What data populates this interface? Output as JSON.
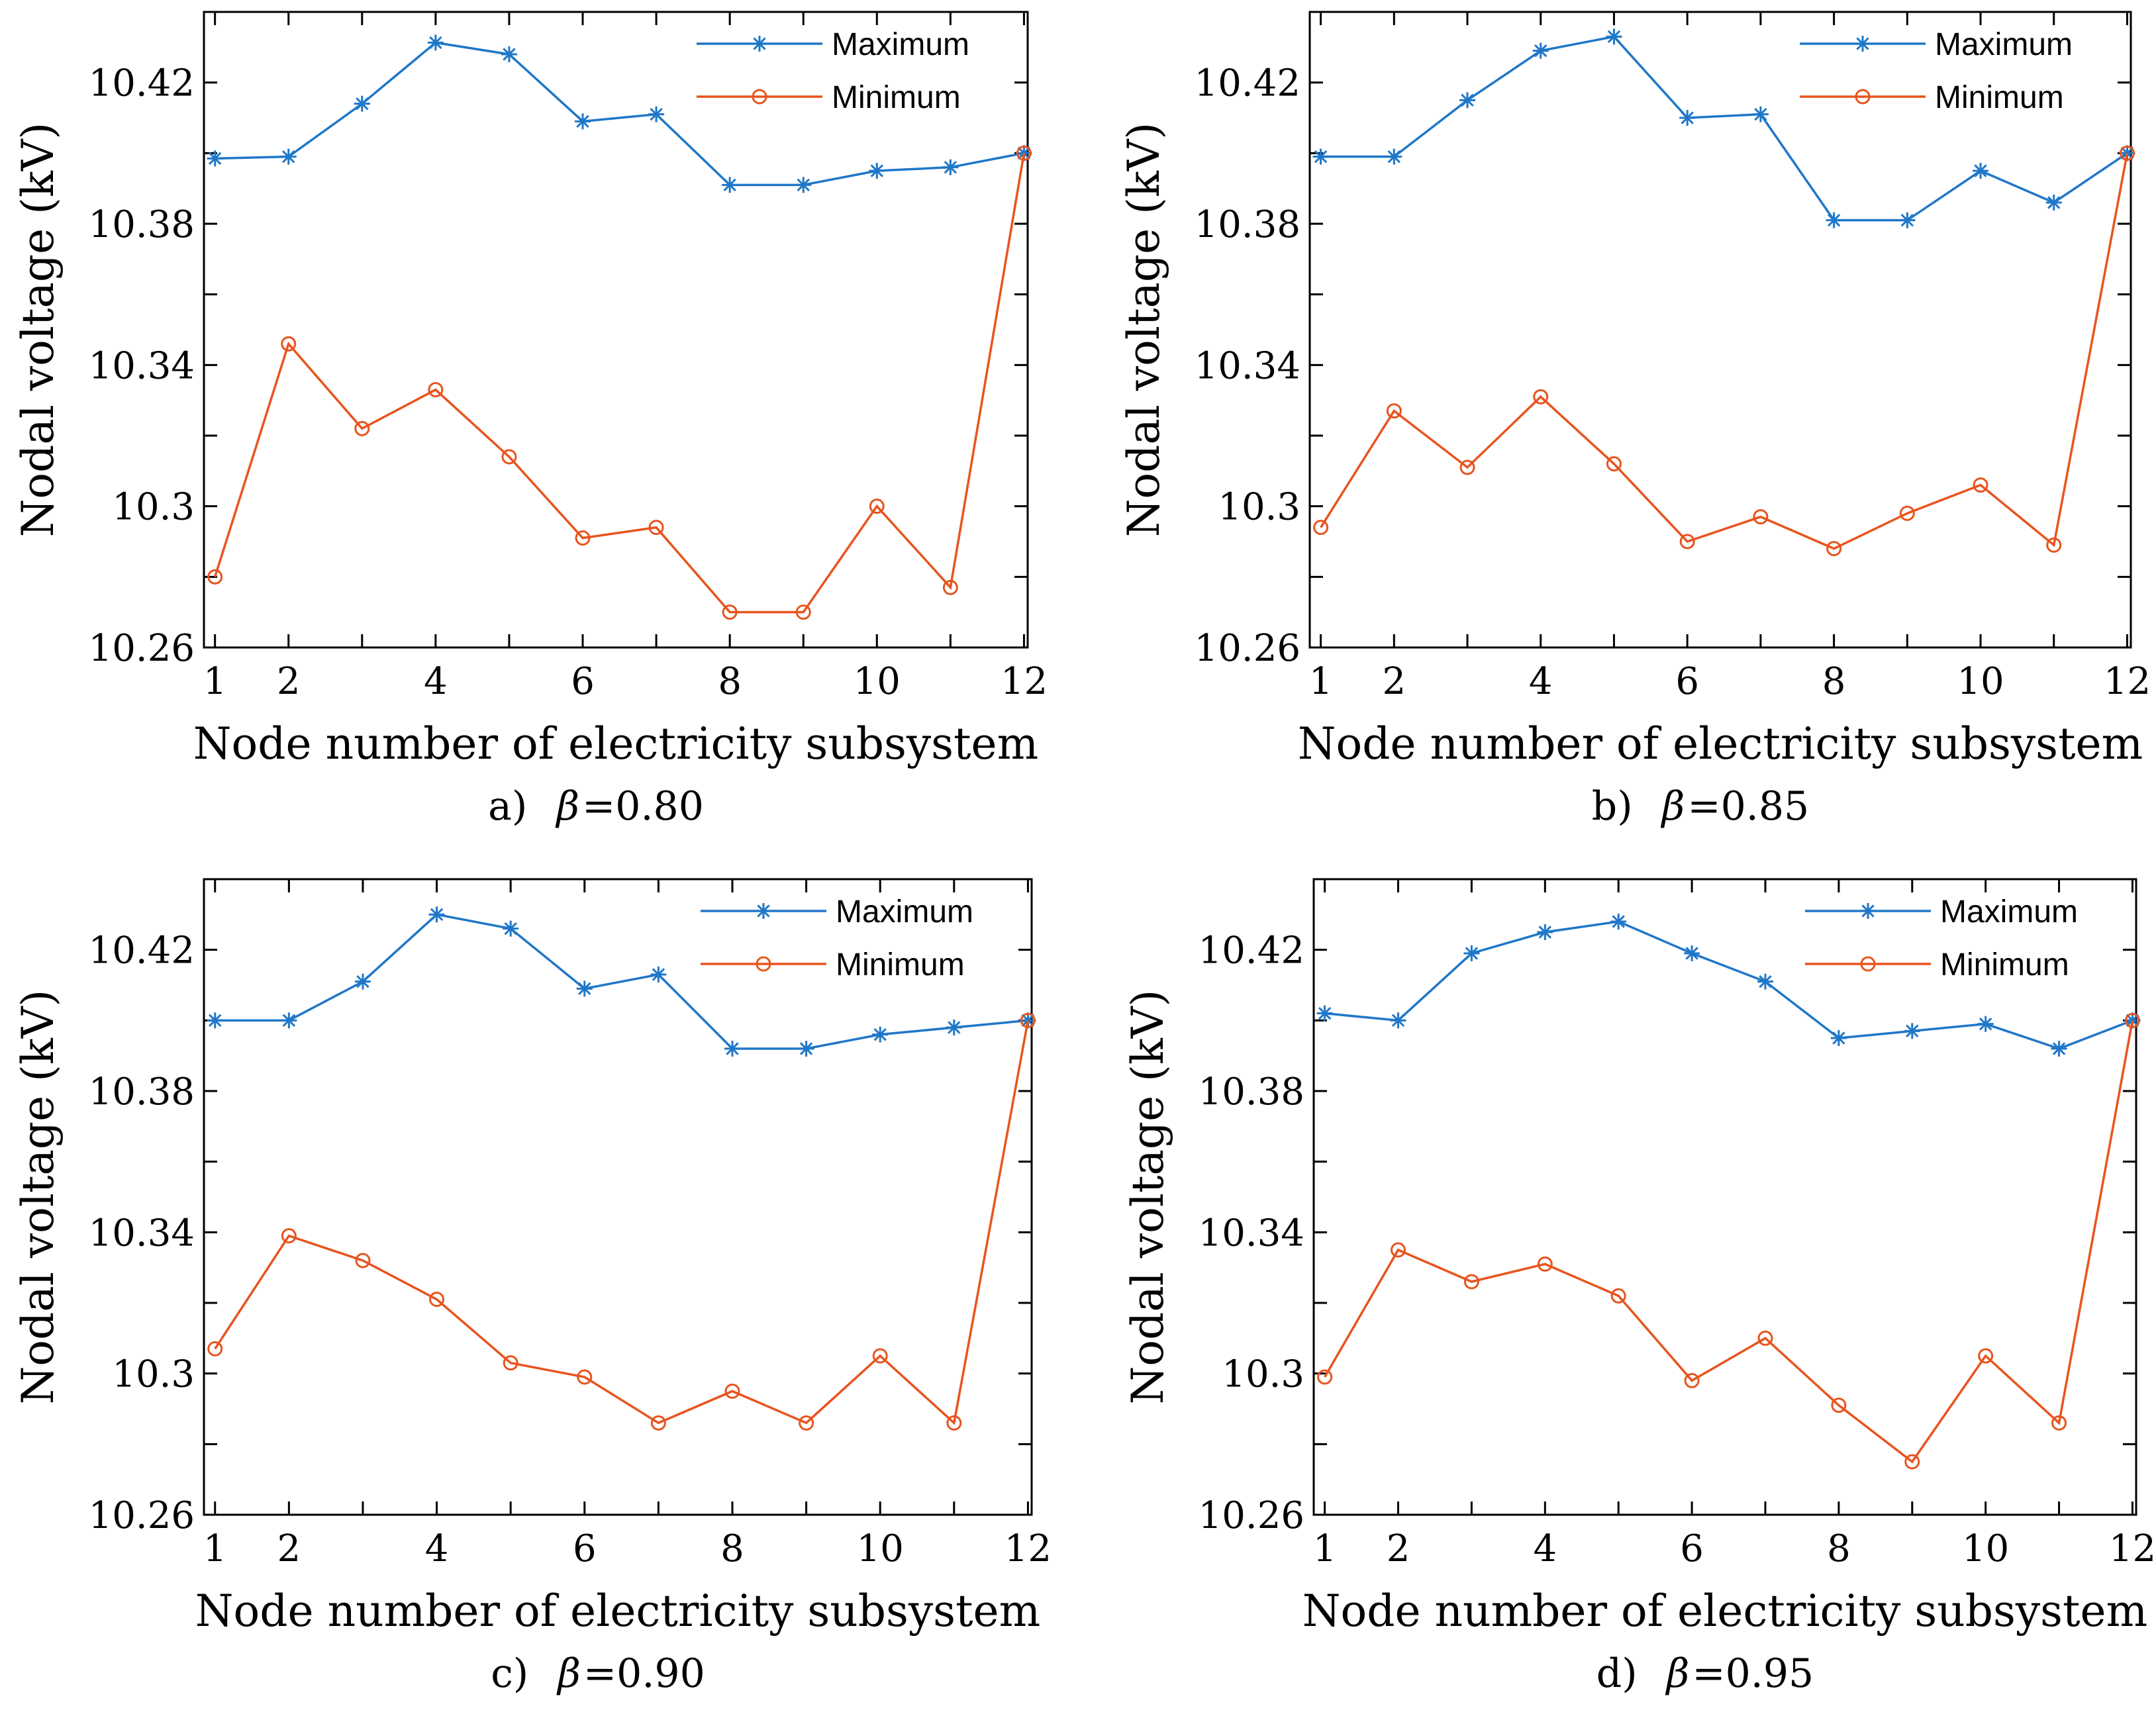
{
  "chart_data": [
    {
      "type": "line",
      "panel_label": "a)",
      "beta_symbol": "β",
      "beta_text": "=0.80",
      "xlabel": "Node number of electricity  subsystem",
      "ylabel": "Nodal voltage (kV)",
      "xlim": [
        0.85,
        12.05
      ],
      "ylim": [
        10.26,
        10.44
      ],
      "xticks": [
        1,
        2,
        4,
        6,
        8,
        10,
        12
      ],
      "yticks": [
        10.26,
        10.3,
        10.34,
        10.38,
        10.42
      ],
      "ytick_labels": [
        "10.26",
        "10.3",
        "10.34",
        "10.38",
        "10.42"
      ],
      "x": [
        1,
        2,
        3,
        4,
        5,
        6,
        7,
        8,
        9,
        10,
        11,
        12
      ],
      "series": [
        {
          "name": "Maximum",
          "values": [
            10.3985,
            10.399,
            10.414,
            10.4313,
            10.428,
            10.409,
            10.411,
            10.391,
            10.391,
            10.395,
            10.396,
            10.4
          ],
          "color": "#1f77c8",
          "marker": "star"
        },
        {
          "name": "Minimum",
          "values": [
            10.28,
            10.346,
            10.322,
            10.333,
            10.314,
            10.291,
            10.294,
            10.27,
            10.27,
            10.3,
            10.277,
            10.4
          ],
          "color": "#e8541e",
          "marker": "circle"
        }
      ]
    },
    {
      "type": "line",
      "panel_label": "b)",
      "beta_symbol": "β",
      "beta_text": "=0.85",
      "xlabel": "Node number of electricity  subsystem",
      "ylabel": "Nodal voltage (kV)",
      "xlim": [
        0.85,
        12.05
      ],
      "ylim": [
        10.26,
        10.44
      ],
      "xticks": [
        1,
        2,
        4,
        6,
        8,
        10,
        12
      ],
      "yticks": [
        10.26,
        10.3,
        10.34,
        10.38,
        10.42
      ],
      "ytick_labels": [
        "10.26",
        "10.3",
        "10.34",
        "10.38",
        "10.42"
      ],
      "x": [
        1,
        2,
        3,
        4,
        5,
        6,
        7,
        8,
        9,
        10,
        11,
        12
      ],
      "series": [
        {
          "name": "Maximum",
          "values": [
            10.399,
            10.399,
            10.415,
            10.429,
            10.433,
            10.41,
            10.411,
            10.381,
            10.381,
            10.395,
            10.386,
            10.4
          ],
          "color": "#1f77c8",
          "marker": "star"
        },
        {
          "name": "Minimum",
          "values": [
            10.294,
            10.327,
            10.311,
            10.331,
            10.312,
            10.29,
            10.297,
            10.288,
            10.298,
            10.306,
            10.289,
            10.4
          ],
          "color": "#e8541e",
          "marker": "circle"
        }
      ]
    },
    {
      "type": "line",
      "panel_label": "c)",
      "beta_symbol": "β",
      "beta_text": "=0.90",
      "xlabel": "Node number of electricity  subsystem",
      "ylabel": "Nodal voltage (kV)",
      "xlim": [
        0.85,
        12.05
      ],
      "ylim": [
        10.26,
        10.44
      ],
      "xticks": [
        1,
        2,
        4,
        6,
        8,
        10,
        12
      ],
      "yticks": [
        10.26,
        10.3,
        10.34,
        10.38,
        10.42
      ],
      "ytick_labels": [
        "10.26",
        "10.3",
        "10.34",
        "10.38",
        "10.42"
      ],
      "x": [
        1,
        2,
        3,
        4,
        5,
        6,
        7,
        8,
        9,
        10,
        11,
        12
      ],
      "series": [
        {
          "name": "Maximum",
          "values": [
            10.4,
            10.4,
            10.411,
            10.43,
            10.426,
            10.409,
            10.413,
            10.392,
            10.392,
            10.396,
            10.398,
            10.4
          ],
          "color": "#1f77c8",
          "marker": "star"
        },
        {
          "name": "Minimum",
          "values": [
            10.307,
            10.339,
            10.332,
            10.321,
            10.303,
            10.299,
            10.286,
            10.295,
            10.286,
            10.305,
            10.286,
            10.4
          ],
          "color": "#e8541e",
          "marker": "circle"
        }
      ]
    },
    {
      "type": "line",
      "panel_label": "d)",
      "beta_symbol": "β",
      "beta_text": "=0.95",
      "xlabel": "Node number of electricity  subsystem",
      "ylabel": "Nodal voltage (kV)",
      "xlim": [
        0.85,
        12.05
      ],
      "ylim": [
        10.26,
        10.44
      ],
      "xticks": [
        1,
        2,
        4,
        6,
        8,
        10,
        12
      ],
      "yticks": [
        10.26,
        10.3,
        10.34,
        10.38,
        10.42
      ],
      "ytick_labels": [
        "10.26",
        "10.3",
        "10.34",
        "10.38",
        "10.42"
      ],
      "x": [
        1,
        2,
        3,
        4,
        5,
        6,
        7,
        8,
        9,
        10,
        11,
        12
      ],
      "series": [
        {
          "name": "Maximum",
          "values": [
            10.402,
            10.4,
            10.419,
            10.425,
            10.428,
            10.419,
            10.411,
            10.395,
            10.397,
            10.399,
            10.392,
            10.4
          ],
          "color": "#1f77c8",
          "marker": "star"
        },
        {
          "name": "Minimum",
          "values": [
            10.299,
            10.335,
            10.326,
            10.331,
            10.322,
            10.298,
            10.31,
            10.291,
            10.275,
            10.305,
            10.286,
            10.4
          ],
          "color": "#e8541e",
          "marker": "circle"
        }
      ]
    }
  ]
}
